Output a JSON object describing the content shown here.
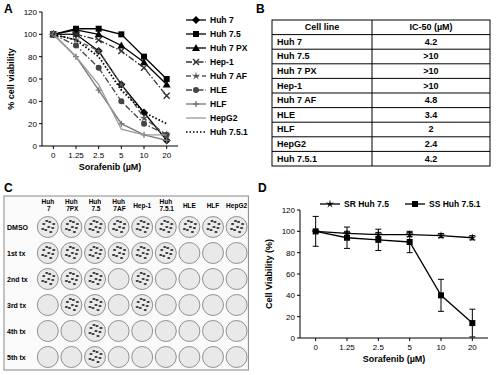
{
  "chart_data": [
    {
      "type": "line",
      "x_label": "Sorafenib (µM)",
      "y_label": "% cell viability",
      "categories": [
        "0",
        "1.25",
        "2.5",
        "5",
        "10",
        "20"
      ],
      "ylim": [
        0,
        120
      ],
      "yticks": [
        0,
        20,
        40,
        60,
        80,
        100,
        120
      ],
      "grid": false,
      "legend": "right",
      "series": [
        {
          "name": "Huh 7",
          "color": "#000000",
          "marker": "diamond",
          "line_style": "solid",
          "values": [
            100,
            100,
            85,
            55,
            30,
            5
          ]
        },
        {
          "name": "Huh 7.5",
          "color": "#000000",
          "marker": "square",
          "line_style": "solid",
          "values": [
            100,
            105,
            105,
            100,
            80,
            60
          ]
        },
        {
          "name": "Huh 7 PX",
          "color": "#000000",
          "marker": "triangle",
          "line_style": "solid",
          "values": [
            100,
            104,
            100,
            90,
            75,
            55
          ]
        },
        {
          "name": "Hep-1",
          "color": "#333333",
          "marker": "x",
          "line_style": "dashdot",
          "values": [
            100,
            100,
            95,
            85,
            70,
            45
          ]
        },
        {
          "name": "Huh 7 AF",
          "color": "#555555",
          "marker": "star",
          "line_style": "dashed",
          "values": [
            100,
            95,
            85,
            55,
            25,
            10
          ]
        },
        {
          "name": "HLE",
          "color": "#444444",
          "marker": "circle",
          "line_style": "dashdot",
          "values": [
            100,
            90,
            70,
            40,
            20,
            10
          ]
        },
        {
          "name": "HLF",
          "color": "#777777",
          "marker": "plus",
          "line_style": "solid",
          "values": [
            100,
            80,
            50,
            20,
            10,
            5
          ]
        },
        {
          "name": "HepG2",
          "color": "#999999",
          "marker": "none",
          "line_style": "solid",
          "values": [
            100,
            80,
            55,
            15,
            10,
            10
          ]
        },
        {
          "name": "Huh 7.5.1",
          "color": "#000000",
          "marker": "none",
          "line_style": "dotted",
          "values": [
            100,
            95,
            80,
            50,
            30,
            20
          ]
        }
      ]
    },
    {
      "type": "line",
      "x_label": "Sorafenib (µM)",
      "y_label": "Cell Viability (%)",
      "categories": [
        "0",
        "1.25",
        "2.5",
        "5",
        "10",
        "20"
      ],
      "ylim": [
        0,
        120
      ],
      "yticks": [
        0,
        20,
        40,
        60,
        80,
        100,
        120
      ],
      "grid": false,
      "legend": "top",
      "series": [
        {
          "name": "SR Huh 7.5",
          "color": "#000000",
          "marker": "star",
          "line_style": "solid",
          "values": [
            100,
            98,
            97,
            97,
            96,
            94
          ],
          "errors": [
            0,
            2,
            2,
            2,
            2,
            2
          ]
        },
        {
          "name": "SS Huh 7.5.1",
          "color": "#000000",
          "marker": "square",
          "line_style": "solid",
          "values": [
            100,
            94,
            92,
            90,
            40,
            14
          ],
          "errors": [
            14,
            10,
            10,
            10,
            15,
            13
          ]
        }
      ]
    }
  ],
  "panel_labels": [
    "A",
    "B",
    "C",
    "D"
  ],
  "table": {
    "header": [
      "Cell line",
      "IC-50  (µM)"
    ],
    "rows": [
      [
        "Huh 7",
        "4.2"
      ],
      [
        "Huh 7.5",
        ">10"
      ],
      [
        "Huh 7 PX",
        ">10"
      ],
      [
        "Hep-1",
        ">10"
      ],
      [
        "Huh 7 AF",
        "4.8"
      ],
      [
        "HLE",
        "3.4"
      ],
      [
        "HLF",
        "2"
      ],
      [
        "HepG2",
        "2.4"
      ],
      [
        "Huh 7.5.1",
        "4.2"
      ]
    ]
  },
  "plates": {
    "columns": [
      "Huh 7",
      "Huh 7PX",
      "Huh 7.5",
      "Huh 7AF",
      "Hep-1",
      "Huh 7.5.1",
      "HLE",
      "HLF",
      "HepG2"
    ],
    "rows": [
      "DMSO",
      "1st tx",
      "2nd tx",
      "3rd tx",
      "4th tx",
      "5th tx"
    ],
    "colonies": [
      [
        true,
        true,
        true,
        true,
        true,
        true,
        true,
        true,
        true
      ],
      [
        true,
        true,
        true,
        true,
        true,
        true,
        false,
        false,
        false
      ],
      [
        true,
        true,
        true,
        false,
        true,
        false,
        false,
        false,
        false
      ],
      [
        false,
        true,
        true,
        false,
        true,
        false,
        false,
        false,
        false
      ],
      [
        false,
        false,
        true,
        false,
        false,
        false,
        false,
        false,
        false
      ],
      [
        false,
        false,
        true,
        false,
        false,
        false,
        false,
        false,
        false
      ]
    ]
  }
}
